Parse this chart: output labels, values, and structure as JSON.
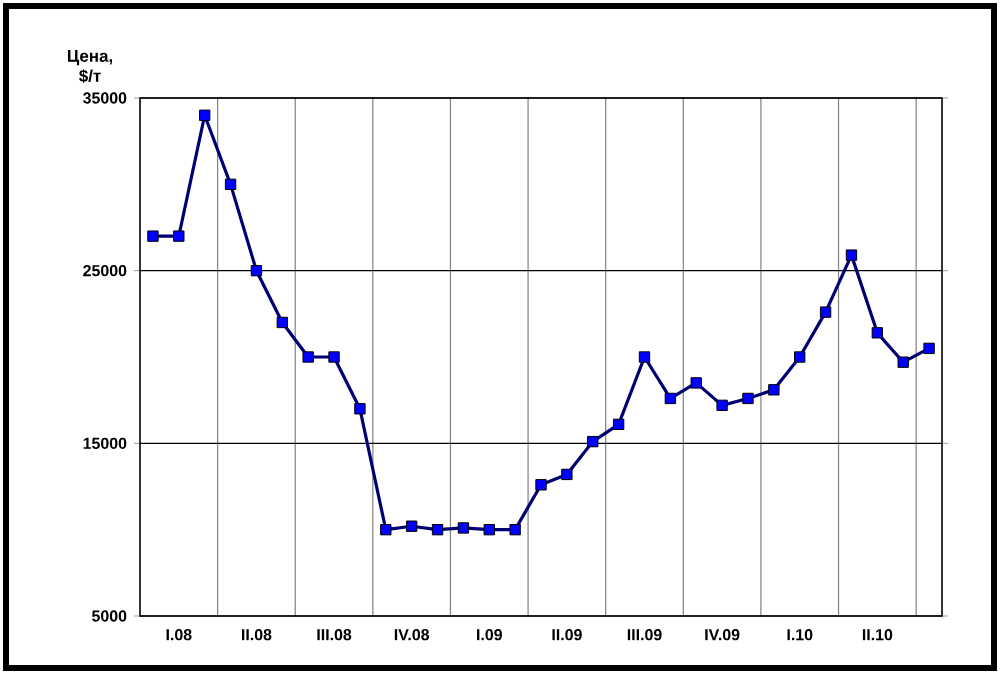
{
  "chart_data": {
    "type": "line",
    "ylabel": "Цена, $/т",
    "categories": [
      null,
      "I.08",
      null,
      null,
      "II.08",
      null,
      null,
      "III.08",
      null,
      null,
      "IV.08",
      null,
      null,
      "I.09",
      null,
      null,
      "II.09",
      null,
      null,
      "III.09",
      null,
      null,
      "IV.09",
      null,
      null,
      "I.10",
      null,
      null,
      "II.10",
      null,
      null
    ],
    "values": [
      27000,
      27000,
      34000,
      30000,
      25000,
      22000,
      20000,
      20000,
      17000,
      10000,
      10200,
      10000,
      10100,
      10000,
      10000,
      12600,
      13200,
      15100,
      16100,
      20000,
      17600,
      18500,
      17200,
      17600,
      18100,
      20000,
      22600,
      25900,
      21400,
      19700,
      20500
    ],
    "color": "#0000ff",
    "ylim": [
      5000,
      35000
    ],
    "yticks": [
      5000,
      15000,
      25000,
      35000
    ],
    "grid": true,
    "marker": "square",
    "line_style": "solid"
  }
}
